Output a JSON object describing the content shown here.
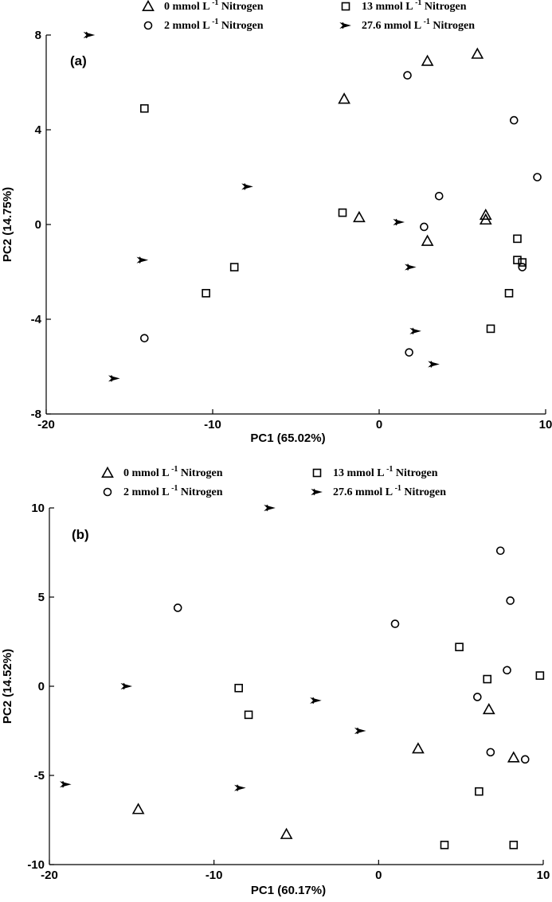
{
  "chart_data": [
    {
      "type": "scatter",
      "panel_label": "(a)",
      "xlabel": "PC1 (65.02%)",
      "ylabel": "PC2 (14.75%)",
      "xlim": [
        -20,
        10
      ],
      "ylim": [
        -8,
        8
      ],
      "xticks": [
        -20,
        -10,
        0,
        10
      ],
      "xtick_labels": [
        "-20",
        "-10",
        "0",
        "10"
      ],
      "yticks": [
        8,
        4,
        0,
        -4,
        -8
      ],
      "ytick_labels": [
        "8",
        "4",
        "0",
        "-4",
        "-8"
      ],
      "grid": false,
      "legend_position": "top",
      "series": [
        {
          "name": "0 mmol L",
          "sup": "-1",
          "suffix": " Nitrogen",
          "marker": "triangle",
          "points": [
            [
              -2.1,
              5.3
            ],
            [
              2.9,
              6.9
            ],
            [
              5.9,
              7.2
            ],
            [
              -1.2,
              0.3
            ],
            [
              6.4,
              0.4
            ],
            [
              6.4,
              0.2
            ],
            [
              2.9,
              -0.7
            ]
          ]
        },
        {
          "name": "2 mmol L",
          "sup": "-1",
          "suffix": " Nitrogen",
          "marker": "circle",
          "points": [
            [
              1.7,
              6.3
            ],
            [
              8.1,
              4.4
            ],
            [
              9.5,
              2.0
            ],
            [
              3.6,
              1.2
            ],
            [
              2.7,
              -0.1
            ],
            [
              8.6,
              -1.8
            ],
            [
              -14.1,
              -4.8
            ],
            [
              1.8,
              -5.4
            ]
          ]
        },
        {
          "name": "13 mmol L",
          "sup": "-1",
          "suffix": " Nitrogen",
          "marker": "square",
          "points": [
            [
              -14.1,
              4.9
            ],
            [
              -2.2,
              0.5
            ],
            [
              8.3,
              -0.6
            ],
            [
              8.3,
              -1.5
            ],
            [
              8.6,
              -1.6
            ],
            [
              -8.7,
              -1.8
            ],
            [
              -10.4,
              -2.9
            ],
            [
              7.8,
              -2.9
            ],
            [
              6.7,
              -4.4
            ]
          ]
        },
        {
          "name": "27.6 mmol L",
          "sup": "-1",
          "suffix": " Nitrogen",
          "marker": "star",
          "points": [
            [
              -17.4,
              8.0
            ],
            [
              -7.9,
              1.6
            ],
            [
              -14.2,
              -1.5
            ],
            [
              1.2,
              0.1
            ],
            [
              1.9,
              -1.8
            ],
            [
              2.2,
              -4.5
            ],
            [
              3.3,
              -5.9
            ],
            [
              -15.9,
              -6.5
            ]
          ]
        }
      ]
    },
    {
      "type": "scatter",
      "panel_label": "(b)",
      "xlabel": "PC1 (60.17%)",
      "ylabel": "PC2 (14.52%)",
      "xlim": [
        -20,
        10
      ],
      "ylim": [
        -10,
        10
      ],
      "xticks": [
        -20,
        -10,
        0,
        10
      ],
      "xtick_labels": [
        "-20",
        "-10",
        "0",
        "10"
      ],
      "yticks": [
        10,
        5,
        0,
        -5,
        -10
      ],
      "ytick_labels": [
        "10",
        "5",
        "0",
        "-5",
        "-10"
      ],
      "grid": false,
      "legend_position": "top",
      "series": [
        {
          "name": "0 mmol L",
          "sup": "-1",
          "suffix": " Nitrogen",
          "marker": "triangle",
          "points": [
            [
              6.7,
              -1.3
            ],
            [
              2.4,
              -3.5
            ],
            [
              8.2,
              -4.0
            ],
            [
              -14.6,
              -6.9
            ],
            [
              -5.6,
              -8.3
            ]
          ]
        },
        {
          "name": "2 mmol L",
          "sup": "-1",
          "suffix": " Nitrogen",
          "marker": "circle",
          "points": [
            [
              7.4,
              7.6
            ],
            [
              -12.2,
              4.4
            ],
            [
              8.0,
              4.8
            ],
            [
              1.0,
              3.5
            ],
            [
              7.8,
              0.9
            ],
            [
              6.0,
              -0.6
            ],
            [
              6.8,
              -3.7
            ],
            [
              8.9,
              -4.1
            ]
          ]
        },
        {
          "name": "13 mmol L",
          "sup": "-1",
          "suffix": " Nitrogen",
          "marker": "square",
          "points": [
            [
              4.9,
              2.2
            ],
            [
              6.6,
              0.4
            ],
            [
              9.8,
              0.6
            ],
            [
              -8.5,
              -0.1
            ],
            [
              -7.9,
              -1.6
            ],
            [
              6.1,
              -5.9
            ],
            [
              4.0,
              -8.9
            ],
            [
              8.2,
              -8.9
            ]
          ]
        },
        {
          "name": "27.6 mmol L",
          "sup": "-1",
          "suffix": " Nitrogen",
          "marker": "star",
          "points": [
            [
              -6.6,
              10.0
            ],
            [
              -15.3,
              0.0
            ],
            [
              -3.8,
              -0.8
            ],
            [
              -1.1,
              -2.5
            ],
            [
              -19.0,
              -5.5
            ],
            [
              -8.4,
              -5.7
            ]
          ]
        }
      ]
    }
  ]
}
